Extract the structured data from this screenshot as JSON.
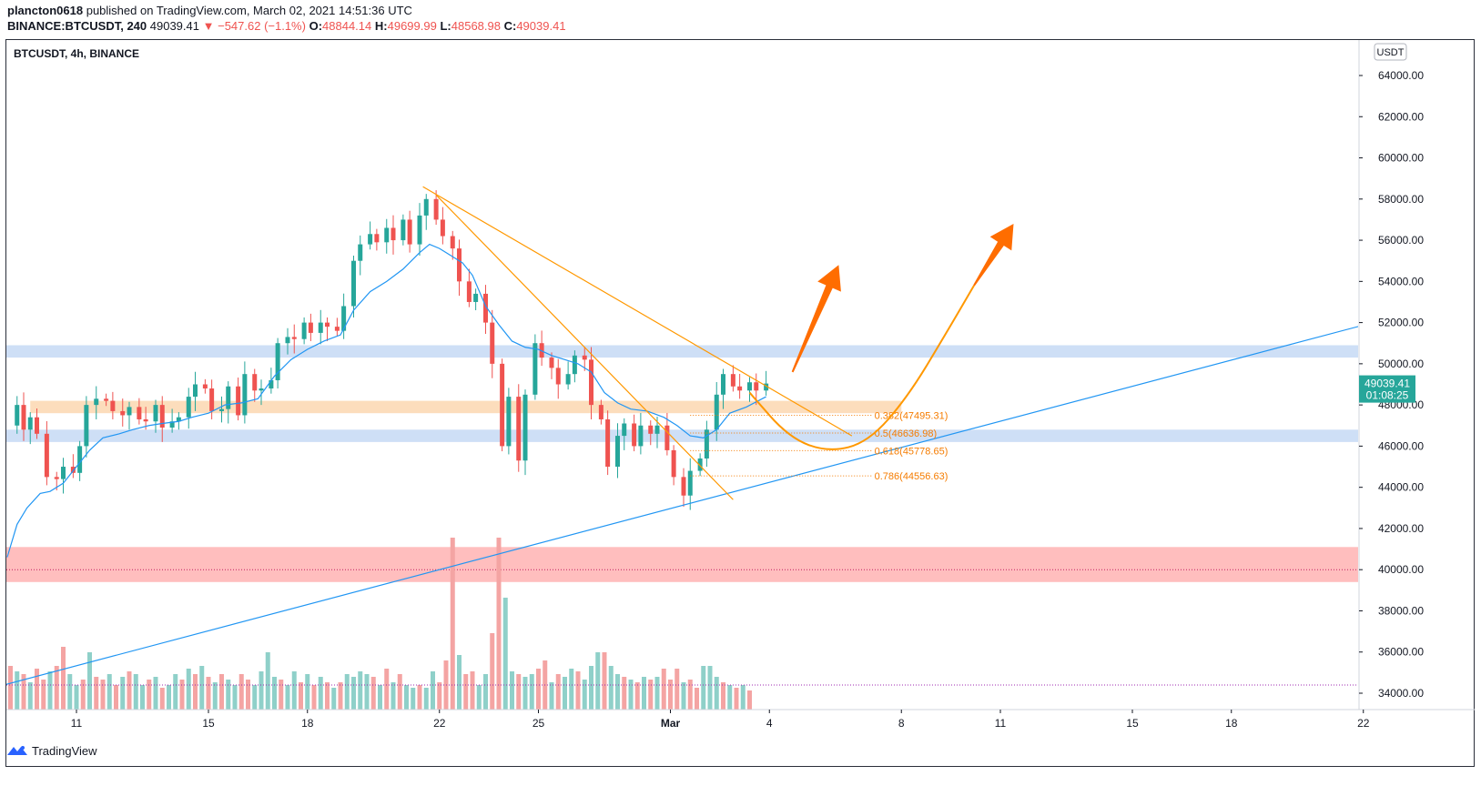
{
  "header": {
    "publisher": "plancton0618",
    "published_text": "published on TradingView.com, March 02, 2021 14:51:36 UTC",
    "symbol": "BINANCE:BTCUSDT, 240",
    "last": "49039.41",
    "change": "▼ −547.62 (−1.1%)",
    "o_label": "O:",
    "o": "48844.14",
    "h_label": "H:",
    "h": "49699.99",
    "l_label": "L:",
    "l": "48568.98",
    "c_label": "C:",
    "c": "49039.41"
  },
  "chart_title": "BTCUSDT, 4h, BINANCE",
  "footer": {
    "brand": "TradingView",
    "logo_icon": "tradingview-logo-icon"
  },
  "colors": {
    "up": "#26a69a",
    "down": "#ef5350",
    "ma": "#2196f3",
    "fib": "#f57c00",
    "projection": "#ff9800",
    "trendline": "#2196f3",
    "blue_zone": "#c5d9f5",
    "orange_zone": "#fbd7b0",
    "red_zone": "#ffb3b3"
  },
  "chart_data": {
    "type": "candlestick",
    "title": "BTCUSDT, 4h, BINANCE",
    "currency": "USDT",
    "y_ticks": [
      34000,
      36000,
      38000,
      40000,
      42000,
      44000,
      46000,
      48000,
      50000,
      52000,
      54000,
      56000,
      58000,
      60000,
      62000,
      64000
    ],
    "y_tick_labels": [
      "34000.00",
      "36000.00",
      "38000.00",
      "40000.00",
      "42000.00",
      "44000.00",
      "46000.00",
      "48000.00",
      "50000.00",
      "52000.00",
      "54000.00",
      "56000.00",
      "58000.00",
      "60000.00",
      "62000.00",
      "64000.00"
    ],
    "ylim": [
      33100,
      65800
    ],
    "x_ticks": [
      {
        "label": "11",
        "day": 11
      },
      {
        "label": "15",
        "day": 15
      },
      {
        "label": "18",
        "day": 18
      },
      {
        "label": "22",
        "day": 22
      },
      {
        "label": "25",
        "day": 25
      },
      {
        "label": "Mar",
        "day": 29
      },
      {
        "label": "4",
        "day": 32
      },
      {
        "label": "8",
        "day": 36
      },
      {
        "label": "11",
        "day": 39
      },
      {
        "label": "15",
        "day": 43
      },
      {
        "label": "18",
        "day": 46
      },
      {
        "label": "22",
        "day": 50
      }
    ],
    "price_label": {
      "value": 49039.41,
      "price": "49039.41",
      "countdown": "01:08:25"
    },
    "close_path": [
      [
        8.9,
        47000
      ],
      [
        9.2,
        48000
      ],
      [
        9.4,
        46800
      ],
      [
        9.6,
        47400
      ],
      [
        9.8,
        46600
      ],
      [
        10.1,
        44500
      ],
      [
        10.4,
        44400
      ],
      [
        10.6,
        45000
      ],
      [
        10.9,
        44700
      ],
      [
        11.1,
        46000
      ],
      [
        11.3,
        48000
      ],
      [
        11.6,
        48300
      ],
      [
        11.9,
        48200
      ],
      [
        12.1,
        47700
      ],
      [
        12.4,
        47500
      ],
      [
        12.6,
        47900
      ],
      [
        12.9,
        47300
      ],
      [
        13.1,
        47200
      ],
      [
        13.4,
        48000
      ],
      [
        13.6,
        46900
      ],
      [
        13.9,
        47200
      ],
      [
        14.1,
        47400
      ],
      [
        14.4,
        48400
      ],
      [
        14.6,
        49000
      ],
      [
        14.9,
        48800
      ],
      [
        15.1,
        47700
      ],
      [
        15.4,
        47800
      ],
      [
        15.6,
        48900
      ],
      [
        15.9,
        47500
      ],
      [
        16.1,
        49500
      ],
      [
        16.4,
        48700
      ],
      [
        16.6,
        48800
      ],
      [
        16.9,
        49200
      ],
      [
        17.1,
        51000
      ],
      [
        17.4,
        51300
      ],
      [
        17.6,
        51200
      ],
      [
        17.9,
        52000
      ],
      [
        18.1,
        51500
      ],
      [
        18.4,
        52000
      ],
      [
        18.6,
        51800
      ],
      [
        18.9,
        51600
      ],
      [
        19.1,
        52800
      ],
      [
        19.4,
        55000
      ],
      [
        19.6,
        55800
      ],
      [
        19.9,
        56300
      ],
      [
        20.1,
        55900
      ],
      [
        20.4,
        56600
      ],
      [
        20.6,
        56000
      ],
      [
        20.9,
        57000
      ],
      [
        21.1,
        55800
      ],
      [
        21.4,
        57200
      ],
      [
        21.6,
        58000
      ],
      [
        21.9,
        57000
      ],
      [
        22.1,
        56200
      ],
      [
        22.4,
        55600
      ],
      [
        22.6,
        54000
      ],
      [
        22.9,
        53000
      ],
      [
        23.1,
        53400
      ],
      [
        23.4,
        52000
      ],
      [
        23.6,
        50000
      ],
      [
        23.9,
        46000
      ],
      [
        24.1,
        48400
      ],
      [
        24.4,
        45300
      ],
      [
        24.6,
        48500
      ],
      [
        24.9,
        51000
      ],
      [
        25.1,
        50300
      ],
      [
        25.4,
        49800
      ],
      [
        25.6,
        49000
      ],
      [
        25.9,
        49500
      ],
      [
        26.1,
        50400
      ],
      [
        26.4,
        50200
      ],
      [
        26.6,
        48000
      ],
      [
        26.9,
        47300
      ],
      [
        27.1,
        45000
      ],
      [
        27.4,
        46500
      ],
      [
        27.6,
        47100
      ],
      [
        27.9,
        46000
      ],
      [
        28.1,
        47000
      ],
      [
        28.4,
        46600
      ],
      [
        28.6,
        47000
      ],
      [
        28.9,
        45800
      ],
      [
        29.1,
        44500
      ],
      [
        29.4,
        43600
      ],
      [
        29.6,
        44800
      ],
      [
        29.9,
        45400
      ],
      [
        30.1,
        46800
      ],
      [
        30.4,
        48500
      ],
      [
        30.6,
        49500
      ],
      [
        30.9,
        48900
      ],
      [
        31.1,
        48700
      ],
      [
        31.4,
        49100
      ],
      [
        31.6,
        48700
      ],
      [
        31.9,
        49039
      ]
    ],
    "ma": [
      [
        8.9,
        40600
      ],
      [
        9.2,
        42200
      ],
      [
        9.5,
        43000
      ],
      [
        9.9,
        43700
      ],
      [
        10.2,
        43800
      ],
      [
        10.6,
        44200
      ],
      [
        11.0,
        45000
      ],
      [
        11.4,
        45800
      ],
      [
        11.8,
        46400
      ],
      [
        12.3,
        46600
      ],
      [
        12.7,
        46800
      ],
      [
        13.2,
        47000
      ],
      [
        13.6,
        47100
      ],
      [
        14.1,
        47200
      ],
      [
        14.5,
        47400
      ],
      [
        15.0,
        47600
      ],
      [
        15.5,
        48000
      ],
      [
        16.0,
        48100
      ],
      [
        16.5,
        48300
      ],
      [
        17.0,
        49400
      ],
      [
        17.5,
        50200
      ],
      [
        18.0,
        50700
      ],
      [
        18.5,
        51100
      ],
      [
        19.0,
        51400
      ],
      [
        19.4,
        52600
      ],
      [
        19.9,
        53500
      ],
      [
        20.4,
        54000
      ],
      [
        20.9,
        54600
      ],
      [
        21.4,
        55400
      ],
      [
        21.7,
        55800
      ],
      [
        22.0,
        55600
      ],
      [
        22.3,
        55300
      ],
      [
        22.7,
        54900
      ],
      [
        23.0,
        54300
      ],
      [
        23.4,
        52800
      ],
      [
        23.8,
        51900
      ],
      [
        24.2,
        51100
      ],
      [
        24.6,
        50800
      ],
      [
        25.0,
        50700
      ],
      [
        25.4,
        50400
      ],
      [
        25.8,
        50200
      ],
      [
        26.2,
        50000
      ],
      [
        26.6,
        49600
      ],
      [
        27.0,
        48600
      ],
      [
        27.4,
        48100
      ],
      [
        27.8,
        47800
      ],
      [
        28.3,
        47700
      ],
      [
        28.8,
        47400
      ],
      [
        29.2,
        47000
      ],
      [
        29.6,
        46500
      ],
      [
        30.0,
        46400
      ],
      [
        30.4,
        46800
      ],
      [
        30.8,
        47600
      ],
      [
        31.3,
        47900
      ],
      [
        31.9,
        48400
      ]
    ],
    "volume_bars": [
      {
        "day": 8.8,
        "v": 2.1,
        "d": 0
      },
      {
        "day": 9.0,
        "v": 1.6,
        "d": 1
      },
      {
        "day": 9.2,
        "v": 1.4,
        "d": 0
      },
      {
        "day": 9.4,
        "v": 1.3,
        "d": 1
      },
      {
        "day": 9.6,
        "v": 1.0,
        "d": 0
      },
      {
        "day": 9.8,
        "v": 1.5,
        "d": 1
      },
      {
        "day": 10.0,
        "v": 1.1,
        "d": 1
      },
      {
        "day": 10.2,
        "v": 1.4,
        "d": 0
      },
      {
        "day": 10.4,
        "v": 1.6,
        "d": 1
      },
      {
        "day": 10.6,
        "v": 2.3,
        "d": 1
      },
      {
        "day": 10.8,
        "v": 1.3,
        "d": 0
      },
      {
        "day": 11.0,
        "v": 0.9,
        "d": 0
      },
      {
        "day": 11.2,
        "v": 1.1,
        "d": 1
      },
      {
        "day": 11.4,
        "v": 2.1,
        "d": 0
      },
      {
        "day": 11.6,
        "v": 1.2,
        "d": 1
      },
      {
        "day": 11.8,
        "v": 1.1,
        "d": 1
      },
      {
        "day": 12.0,
        "v": 1.3,
        "d": 0
      },
      {
        "day": 12.2,
        "v": 0.9,
        "d": 1
      },
      {
        "day": 12.4,
        "v": 1.2,
        "d": 0
      },
      {
        "day": 12.6,
        "v": 1.4,
        "d": 1
      },
      {
        "day": 12.8,
        "v": 1.3,
        "d": 0
      },
      {
        "day": 13.0,
        "v": 0.9,
        "d": 0
      },
      {
        "day": 13.2,
        "v": 1.1,
        "d": 1
      },
      {
        "day": 13.4,
        "v": 1.2,
        "d": 0
      },
      {
        "day": 13.6,
        "v": 0.8,
        "d": 1
      },
      {
        "day": 13.8,
        "v": 0.9,
        "d": 0
      },
      {
        "day": 14.0,
        "v": 1.3,
        "d": 0
      },
      {
        "day": 14.2,
        "v": 1.1,
        "d": 1
      },
      {
        "day": 14.4,
        "v": 1.5,
        "d": 0
      },
      {
        "day": 14.6,
        "v": 1.3,
        "d": 1
      },
      {
        "day": 14.8,
        "v": 1.6,
        "d": 0
      },
      {
        "day": 15.0,
        "v": 1.2,
        "d": 1
      },
      {
        "day": 15.2,
        "v": 1.0,
        "d": 0
      },
      {
        "day": 15.4,
        "v": 1.3,
        "d": 1
      },
      {
        "day": 15.6,
        "v": 1.1,
        "d": 0
      },
      {
        "day": 15.8,
        "v": 0.9,
        "d": 0
      },
      {
        "day": 16.0,
        "v": 1.3,
        "d": 1
      },
      {
        "day": 16.2,
        "v": 1.1,
        "d": 1
      },
      {
        "day": 16.4,
        "v": 0.9,
        "d": 0
      },
      {
        "day": 16.6,
        "v": 1.4,
        "d": 0
      },
      {
        "day": 16.8,
        "v": 2.1,
        "d": 0
      },
      {
        "day": 17.0,
        "v": 1.2,
        "d": 0
      },
      {
        "day": 17.2,
        "v": 1.1,
        "d": 1
      },
      {
        "day": 17.4,
        "v": 0.9,
        "d": 0
      },
      {
        "day": 17.6,
        "v": 1.4,
        "d": 0
      },
      {
        "day": 17.8,
        "v": 1.0,
        "d": 1
      },
      {
        "day": 18.0,
        "v": 1.3,
        "d": 0
      },
      {
        "day": 18.2,
        "v": 0.9,
        "d": 1
      },
      {
        "day": 18.4,
        "v": 1.2,
        "d": 0
      },
      {
        "day": 18.6,
        "v": 1.0,
        "d": 1
      },
      {
        "day": 18.8,
        "v": 0.8,
        "d": 0
      },
      {
        "day": 19.0,
        "v": 1.0,
        "d": 1
      },
      {
        "day": 19.2,
        "v": 1.3,
        "d": 0
      },
      {
        "day": 19.4,
        "v": 1.2,
        "d": 0
      },
      {
        "day": 19.6,
        "v": 1.4,
        "d": 0
      },
      {
        "day": 19.8,
        "v": 1.3,
        "d": 0
      },
      {
        "day": 20.0,
        "v": 1.2,
        "d": 1
      },
      {
        "day": 20.2,
        "v": 0.9,
        "d": 0
      },
      {
        "day": 20.4,
        "v": 1.5,
        "d": 1
      },
      {
        "day": 20.6,
        "v": 1.0,
        "d": 0
      },
      {
        "day": 20.8,
        "v": 1.3,
        "d": 1
      },
      {
        "day": 21.0,
        "v": 0.9,
        "d": 0
      },
      {
        "day": 21.2,
        "v": 0.8,
        "d": 0
      },
      {
        "day": 21.4,
        "v": 0.9,
        "d": 1
      },
      {
        "day": 21.6,
        "v": 0.8,
        "d": 0
      },
      {
        "day": 21.8,
        "v": 1.4,
        "d": 0
      },
      {
        "day": 22.0,
        "v": 1.0,
        "d": 1
      },
      {
        "day": 22.2,
        "v": 1.8,
        "d": 1
      },
      {
        "day": 22.4,
        "v": 6.3,
        "d": 1
      },
      {
        "day": 22.6,
        "v": 2.0,
        "d": 0
      },
      {
        "day": 22.8,
        "v": 1.3,
        "d": 1
      },
      {
        "day": 23.0,
        "v": 1.4,
        "d": 1
      },
      {
        "day": 23.2,
        "v": 0.9,
        "d": 0
      },
      {
        "day": 23.4,
        "v": 1.3,
        "d": 0
      },
      {
        "day": 23.6,
        "v": 2.8,
        "d": 1
      },
      {
        "day": 23.8,
        "v": 6.3,
        "d": 1
      },
      {
        "day": 24.0,
        "v": 4.1,
        "d": 0
      },
      {
        "day": 24.2,
        "v": 1.4,
        "d": 0
      },
      {
        "day": 24.4,
        "v": 1.3,
        "d": 1
      },
      {
        "day": 24.6,
        "v": 1.2,
        "d": 0
      },
      {
        "day": 24.8,
        "v": 1.3,
        "d": 0
      },
      {
        "day": 25.0,
        "v": 1.5,
        "d": 1
      },
      {
        "day": 25.2,
        "v": 1.8,
        "d": 1
      },
      {
        "day": 25.4,
        "v": 1.0,
        "d": 0
      },
      {
        "day": 25.6,
        "v": 1.3,
        "d": 1
      },
      {
        "day": 25.8,
        "v": 1.2,
        "d": 0
      },
      {
        "day": 26.0,
        "v": 1.5,
        "d": 0
      },
      {
        "day": 26.2,
        "v": 1.4,
        "d": 1
      },
      {
        "day": 26.4,
        "v": 1.1,
        "d": 0
      },
      {
        "day": 26.6,
        "v": 1.6,
        "d": 0
      },
      {
        "day": 26.8,
        "v": 2.1,
        "d": 0
      },
      {
        "day": 27.0,
        "v": 2.1,
        "d": 1
      },
      {
        "day": 27.2,
        "v": 1.6,
        "d": 0
      },
      {
        "day": 27.4,
        "v": 1.3,
        "d": 0
      },
      {
        "day": 27.6,
        "v": 1.2,
        "d": 1
      },
      {
        "day": 27.8,
        "v": 1.1,
        "d": 0
      },
      {
        "day": 28.0,
        "v": 1.0,
        "d": 1
      },
      {
        "day": 28.2,
        "v": 1.2,
        "d": 0
      },
      {
        "day": 28.4,
        "v": 1.1,
        "d": 1
      },
      {
        "day": 28.6,
        "v": 1.2,
        "d": 0
      },
      {
        "day": 28.8,
        "v": 1.5,
        "d": 1
      },
      {
        "day": 29.0,
        "v": 1.1,
        "d": 1
      },
      {
        "day": 29.2,
        "v": 1.5,
        "d": 1
      },
      {
        "day": 29.4,
        "v": 1.0,
        "d": 0
      },
      {
        "day": 29.6,
        "v": 1.1,
        "d": 1
      },
      {
        "day": 29.8,
        "v": 0.8,
        "d": 1
      },
      {
        "day": 30.0,
        "v": 1.6,
        "d": 0
      },
      {
        "day": 30.2,
        "v": 1.6,
        "d": 0
      },
      {
        "day": 30.4,
        "v": 1.2,
        "d": 0
      },
      {
        "day": 30.6,
        "v": 1.0,
        "d": 1
      },
      {
        "day": 30.8,
        "v": 0.9,
        "d": 0
      },
      {
        "day": 31.0,
        "v": 0.8,
        "d": 1
      },
      {
        "day": 31.2,
        "v": 0.9,
        "d": 0
      },
      {
        "day": 31.4,
        "v": 0.7,
        "d": 1
      }
    ],
    "zones": [
      {
        "name": "resistance-zone",
        "low": 50300,
        "high": 50900,
        "color": "#c5d9f5"
      },
      {
        "name": "support-zone",
        "low": 46200,
        "high": 46800,
        "color": "#c5d9f5"
      },
      {
        "name": "orange-zone",
        "low": 47600,
        "high": 48200,
        "color": "#fbd7b0",
        "start_day": 9.6,
        "end_day": 36
      },
      {
        "name": "red-zone",
        "low": 39400,
        "high": 41100,
        "color": "#ffb3b3"
      }
    ],
    "fib_levels": [
      {
        "label": "0.382(47495.31)",
        "price": 47495.31
      },
      {
        "label": "0.5(46636.98)",
        "price": 46636.98
      },
      {
        "label": "0.618(45778.65)",
        "price": 45778.65
      },
      {
        "label": "0.786(44556.63)",
        "price": 44556.63
      }
    ],
    "fib_range": {
      "start_day": 29.6,
      "end_day": 35.1
    },
    "red_dotted_level": 40000,
    "volume_dotted_label": "volume-average",
    "trendlines": [
      {
        "name": "rising-support",
        "from": [
          8.8,
          34400
        ],
        "to": [
          51.0,
          52300
        ],
        "color": "#2196f3"
      },
      {
        "name": "falling-resistance",
        "from": [
          21.5,
          58600
        ],
        "to": [
          34.5,
          46500
        ],
        "color": "#ff9800"
      },
      {
        "name": "falling-inner",
        "from": [
          21.9,
          58200
        ],
        "to": [
          30.9,
          43400
        ],
        "color": "#ff9800"
      }
    ],
    "projection_path": [
      [
        31.4,
        48600
      ],
      [
        32.6,
        46400
      ],
      [
        33.8,
        45700
      ],
      [
        35.0,
        46200
      ],
      [
        36.2,
        48400
      ],
      [
        37.4,
        51600
      ],
      [
        38.2,
        53800
      ]
    ],
    "arrows": [
      {
        "name": "short-arrow",
        "from": [
          32.7,
          49600
        ],
        "to": [
          34.1,
          54800
        ]
      },
      {
        "name": "long-arrow",
        "from": [
          38.2,
          53800
        ],
        "to": [
          39.4,
          56800
        ]
      }
    ]
  }
}
